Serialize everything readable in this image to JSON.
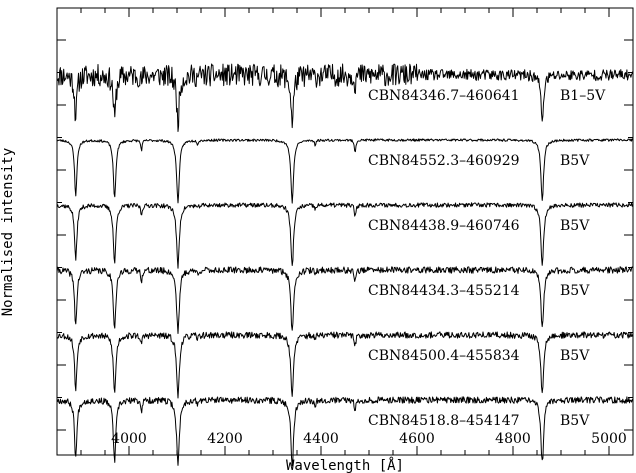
{
  "chart_data": {
    "type": "line",
    "title": "",
    "xlabel": "Wavelength [Å]",
    "ylabel": "Normalised intensity",
    "xlim": [
      3850,
      5050
    ],
    "x_ticks": [
      {
        "value": 4000,
        "label": "4000"
      },
      {
        "value": 4200,
        "label": "4200"
      },
      {
        "value": 4400,
        "label": "4400"
      },
      {
        "value": 4600,
        "label": "4600"
      },
      {
        "value": 4800,
        "label": "4800"
      },
      {
        "value": 5000,
        "label": "5000"
      }
    ],
    "x_minor_step": 50,
    "y_ticks_labelled": false,
    "grid": false,
    "legend": "none",
    "absorption_lines": [
      {
        "wavelength": 3889,
        "depth": 0.55,
        "width": 3.0
      },
      {
        "wavelength": 3970,
        "depth": 0.58,
        "width": 3.2
      },
      {
        "wavelength": 4026,
        "depth": 0.1,
        "width": 1.8
      },
      {
        "wavelength": 4102,
        "depth": 0.62,
        "width": 3.4
      },
      {
        "wavelength": 4143,
        "depth": 0.04,
        "width": 1.5
      },
      {
        "wavelength": 4340,
        "depth": 0.62,
        "width": 3.4
      },
      {
        "wavelength": 4388,
        "depth": 0.05,
        "width": 1.5
      },
      {
        "wavelength": 4471,
        "depth": 0.12,
        "width": 1.8
      },
      {
        "wavelength": 4861,
        "depth": 0.6,
        "width": 3.4
      }
    ],
    "series": [
      {
        "star": "CBN84346.7–460641",
        "spectral_type": "B1–5V",
        "offset": 5,
        "noise": 0.07,
        "line_scale": 0.75,
        "seed": 11
      },
      {
        "star": "CBN84552.3–460929",
        "spectral_type": "B5V",
        "offset": 4,
        "noise": 0.012,
        "line_scale": 1.0,
        "seed": 23
      },
      {
        "star": "CBN84438.9–460746",
        "spectral_type": "B5V",
        "offset": 3,
        "noise": 0.022,
        "line_scale": 1.0,
        "seed": 37
      },
      {
        "star": "CBN84434.3–455214",
        "spectral_type": "B5V",
        "offset": 2,
        "noise": 0.032,
        "line_scale": 1.0,
        "seed": 41
      },
      {
        "star": "CBN84500.4–455834",
        "spectral_type": "B5V",
        "offset": 1,
        "noise": 0.032,
        "line_scale": 1.0,
        "seed": 53
      },
      {
        "star": "CBN84518.8–454147",
        "spectral_type": "B5V",
        "offset": 0,
        "noise": 0.032,
        "line_scale": 1.05,
        "seed": 67
      }
    ]
  }
}
